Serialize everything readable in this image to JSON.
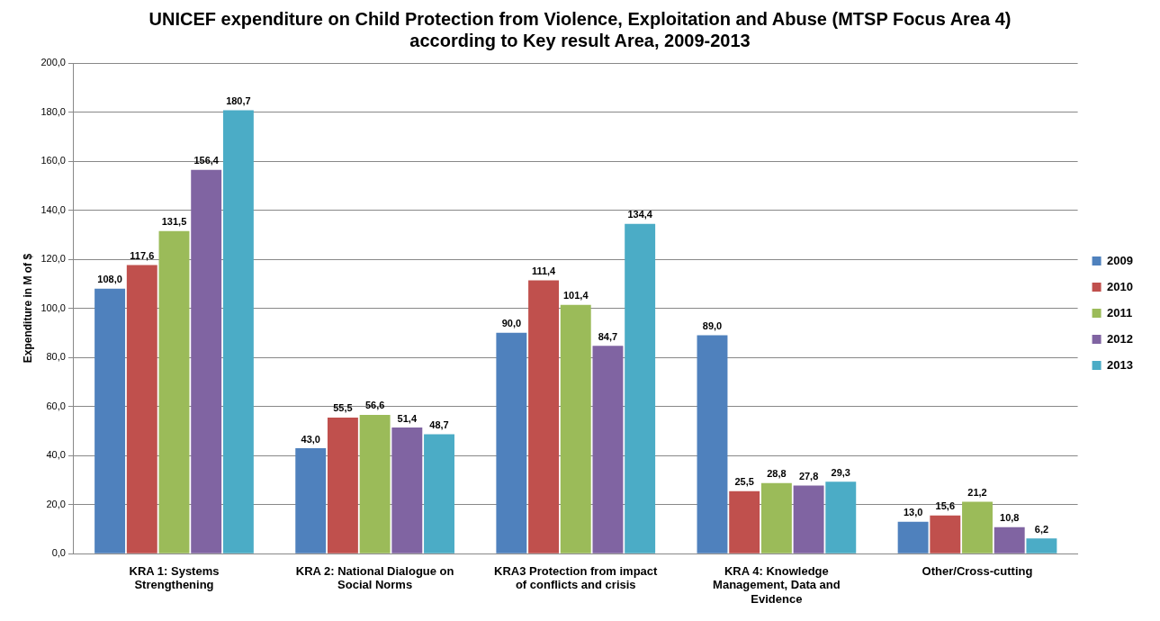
{
  "chart_data": {
    "type": "bar",
    "title": "UNICEF expenditure on Child Protection from Violence, Exploitation and Abuse (MTSP Focus Area 4) according to Key result Area, 2009-2013",
    "ylabel": "Expenditure in M of $",
    "categories": [
      "KRA 1: Systems Strengthening",
      "KRA 2: National Dialogue on Social Norms",
      "KRA3 Protection from impact of conflicts and crisis",
      "KRA 4: Knowledge Management, Data and Evidence",
      "Other/Cross-cutting"
    ],
    "series": [
      {
        "name": "2009",
        "color": "#4f81bd",
        "values": [
          108.0,
          43.0,
          90.0,
          89.0,
          13.0
        ],
        "value_labels": [
          "108,0",
          "43,0",
          "90,0",
          "89,0",
          "13,0"
        ]
      },
      {
        "name": "2010",
        "color": "#c0504d",
        "values": [
          117.6,
          55.5,
          111.4,
          25.5,
          15.6
        ],
        "value_labels": [
          "117,6",
          "55,5",
          "111,4",
          "25,5",
          "15,6"
        ]
      },
      {
        "name": "2011",
        "color": "#9bbb59",
        "values": [
          131.5,
          56.6,
          101.4,
          28.8,
          21.2
        ],
        "value_labels": [
          "131,5",
          "56,6",
          "101,4",
          "28,8",
          "21,2"
        ]
      },
      {
        "name": "2012",
        "color": "#8064a2",
        "values": [
          156.4,
          51.4,
          84.7,
          27.8,
          10.8
        ],
        "value_labels": [
          "156,4",
          "51,4",
          "84,7",
          "27,8",
          "10,8"
        ]
      },
      {
        "name": "2013",
        "color": "#4bacc6",
        "values": [
          180.7,
          48.7,
          134.4,
          29.3,
          6.2
        ],
        "value_labels": [
          "180,7",
          "48,7",
          "134,4",
          "29,3",
          "6,2"
        ]
      }
    ],
    "ylim": [
      0,
      200
    ],
    "yticks": [
      {
        "value": 0,
        "label": "0,0"
      },
      {
        "value": 20,
        "label": "20,0"
      },
      {
        "value": 40,
        "label": "40,0"
      },
      {
        "value": 60,
        "label": "60,0"
      },
      {
        "value": 80,
        "label": "80,0"
      },
      {
        "value": 100,
        "label": "100,0"
      },
      {
        "value": 120,
        "label": "120,0"
      },
      {
        "value": 140,
        "label": "140,0"
      },
      {
        "value": 160,
        "label": "160,0"
      },
      {
        "value": 180,
        "label": "180,0"
      },
      {
        "value": 200,
        "label": "200,0"
      }
    ],
    "grid": "y",
    "legend": "right"
  }
}
